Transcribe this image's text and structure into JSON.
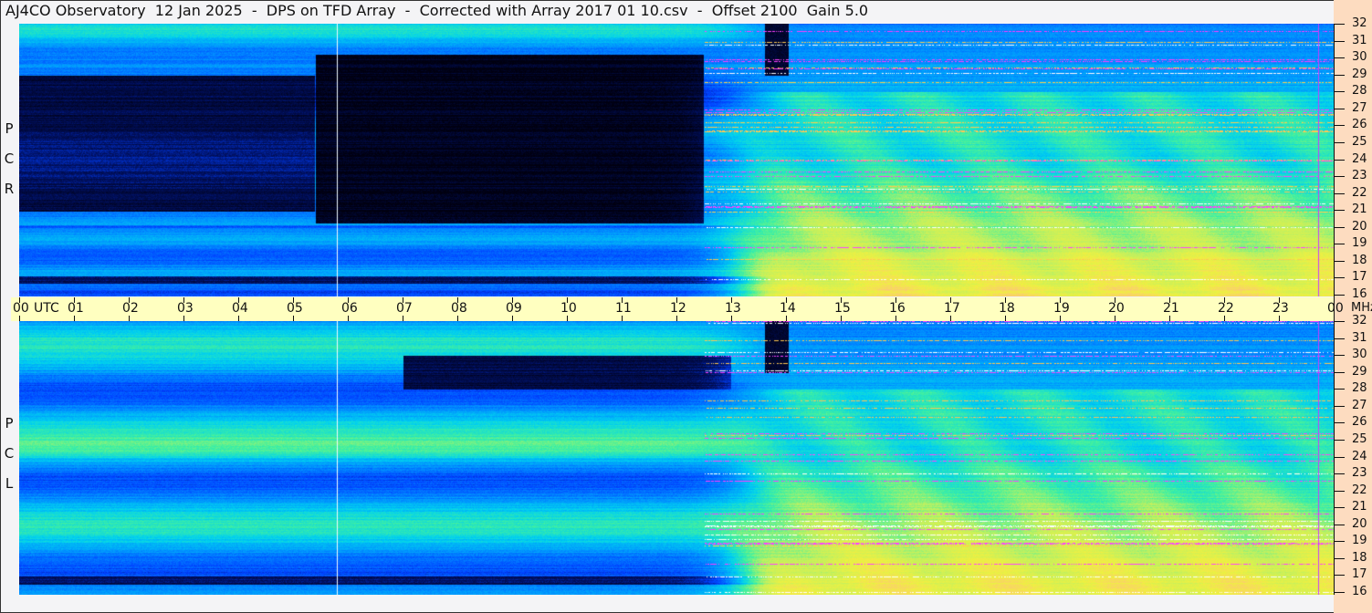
{
  "title": "AJ4CO Observatory  12 Jan 2025  -  DPS on TFD Array  -  Corrected with Array 2017 01 10.csv  -  Offset 2100  Gain 5.0",
  "chart_data": {
    "type": "heatmap",
    "title": "AJ4CO Observatory  12 Jan 2025  -  DPS on TFD Array  -  Corrected with Array 2017 01 10.csv  -  Offset 2100  Gain 5.0",
    "xlabel": "UTC",
    "ylabel": "MHz",
    "x_ticks": [
      "00",
      "01",
      "02",
      "03",
      "04",
      "05",
      "06",
      "07",
      "08",
      "09",
      "10",
      "11",
      "12",
      "13",
      "14",
      "15",
      "16",
      "17",
      "18",
      "19",
      "20",
      "21",
      "22",
      "23",
      "00"
    ],
    "y_ticks": [
      "32",
      "31",
      "30",
      "29",
      "28",
      "27",
      "26",
      "25",
      "24",
      "23",
      "22",
      "21",
      "20",
      "19",
      "18",
      "17",
      "16"
    ],
    "xlim": [
      0,
      24
    ],
    "ylim": [
      16,
      32
    ],
    "panels": [
      {
        "label": [
          "R",
          "C",
          "P"
        ],
        "polarization": "RCP"
      },
      {
        "label": [
          "L",
          "C",
          "P"
        ],
        "polarization": "LCP"
      }
    ],
    "colormap": [
      "#000010",
      "#001060",
      "#0040ff",
      "#0090ff",
      "#00d0f0",
      "#40f0a0",
      "#c0f060",
      "#f0f040",
      "#ffc080"
    ],
    "grid": false,
    "legend": "none"
  },
  "colors": {
    "axis_panel": "#fddcc0",
    "utc_bar": "#ffffc0",
    "rfi": "#ff40ff"
  }
}
